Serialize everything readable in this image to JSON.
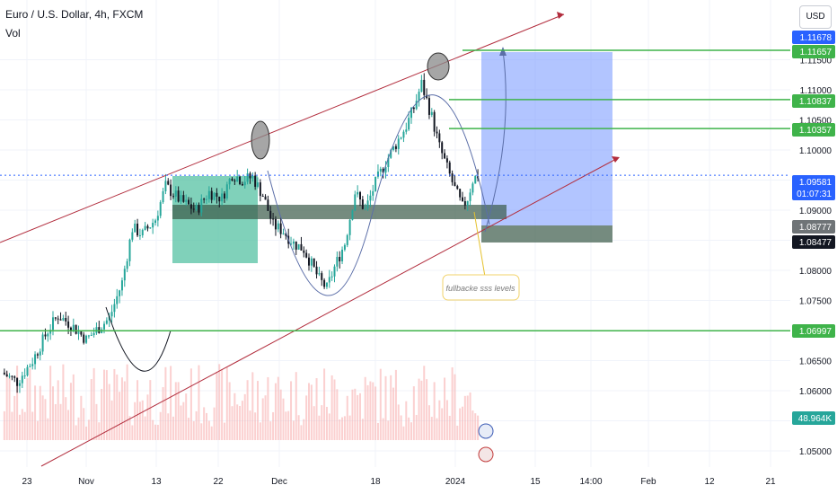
{
  "header": {
    "title": "Euro / U.S. Dollar, 4h, FXCM",
    "volume_label": "Vol",
    "currency_button": "USD"
  },
  "colors": {
    "up": "#26a69a",
    "down": "#131722",
    "channel": "#b22d3d",
    "arc": "#5b6ea8",
    "green_line": "#3fb34a",
    "target_zone": "#7f9eff",
    "stop_zone": "#3a5a48",
    "consolidation_box": "#56c2a3",
    "current_price_label": "#2962ff"
  },
  "chart_data": {
    "type": "candlestick",
    "symbol": "EURUSD",
    "timeframe": "4h",
    "price_axis": {
      "ticks": [
        1.05,
        1.055,
        1.06,
        1.065,
        1.07,
        1.075,
        1.08,
        1.085,
        1.09,
        1.095,
        1.1,
        1.105,
        1.11,
        1.115
      ],
      "tick_labels": [
        "1.05000",
        "1.05500",
        "1.06000",
        "1.06500",
        "1.07000",
        "1.07500",
        "1.08000",
        "1.08500",
        "1.09000",
        "1.09500",
        "1.10000",
        "1.10500",
        "1.11000",
        "1.11500"
      ]
    },
    "time_axis": {
      "labels": [
        "23",
        "Nov",
        "13",
        "22",
        "Dec",
        "18",
        "2024",
        "15",
        "14:00",
        "Feb",
        "12",
        "21"
      ]
    },
    "price_path": [
      [
        0,
        1.063
      ],
      [
        6,
        1.0615
      ],
      [
        12,
        1.065
      ],
      [
        18,
        1.07
      ],
      [
        22,
        1.0725
      ],
      [
        27,
        1.071
      ],
      [
        33,
        1.0685
      ],
      [
        38,
        1.0705
      ],
      [
        42,
        1.072
      ],
      [
        47,
        1.078
      ],
      [
        51,
        1.087
      ],
      [
        55,
        1.086
      ],
      [
        60,
        1.0885
      ],
      [
        64,
        1.094
      ],
      [
        70,
        1.0915
      ],
      [
        76,
        1.09
      ],
      [
        81,
        1.093
      ],
      [
        86,
        1.092
      ],
      [
        90,
        1.096
      ],
      [
        94,
        1.095
      ],
      [
        98,
        1.0955
      ],
      [
        102,
        1.0925
      ],
      [
        106,
        1.0875
      ],
      [
        110,
        1.0865
      ],
      [
        114,
        1.0845
      ],
      [
        118,
        1.0835
      ],
      [
        121,
        1.081
      ],
      [
        124,
        1.0785
      ],
      [
        127,
        1.077
      ],
      [
        130,
        1.0805
      ],
      [
        134,
        1.0845
      ],
      [
        138,
        1.093
      ],
      [
        142,
        1.09
      ],
      [
        146,
        1.0945
      ],
      [
        150,
        1.098
      ],
      [
        154,
        1.101
      ],
      [
        158,
        1.104
      ],
      [
        161,
        1.107
      ],
      [
        164,
        1.111
      ],
      [
        168,
        1.1055
      ],
      [
        171,
        1.1005
      ],
      [
        174,
        1.097
      ],
      [
        177,
        1.0935
      ],
      [
        180,
        1.0905
      ],
      [
        182,
        1.092
      ],
      [
        184,
        1.095
      ],
      [
        186,
        1.0958
      ]
    ],
    "price_labels": [
      {
        "text": "1.11678",
        "style": "outline"
      },
      {
        "text": "1.11657",
        "style": "green"
      },
      {
        "text": "1.10837",
        "style": "green"
      },
      {
        "text": "1.10357",
        "style": "green"
      },
      {
        "text": "1.09581",
        "countdown": "01:07:31",
        "style": "blue"
      },
      {
        "text": "1.08777",
        "style": "gray"
      },
      {
        "text": "1.08477",
        "style": "dark"
      },
      {
        "text": "1.06997",
        "style": "green"
      },
      {
        "text": "48.964K",
        "style": "volume"
      }
    ],
    "horizontal_lines": [
      1.11657,
      1.10837,
      1.10357,
      1.06997
    ],
    "last_price": 1.09581,
    "annotation": "fullbacke sss levels"
  }
}
